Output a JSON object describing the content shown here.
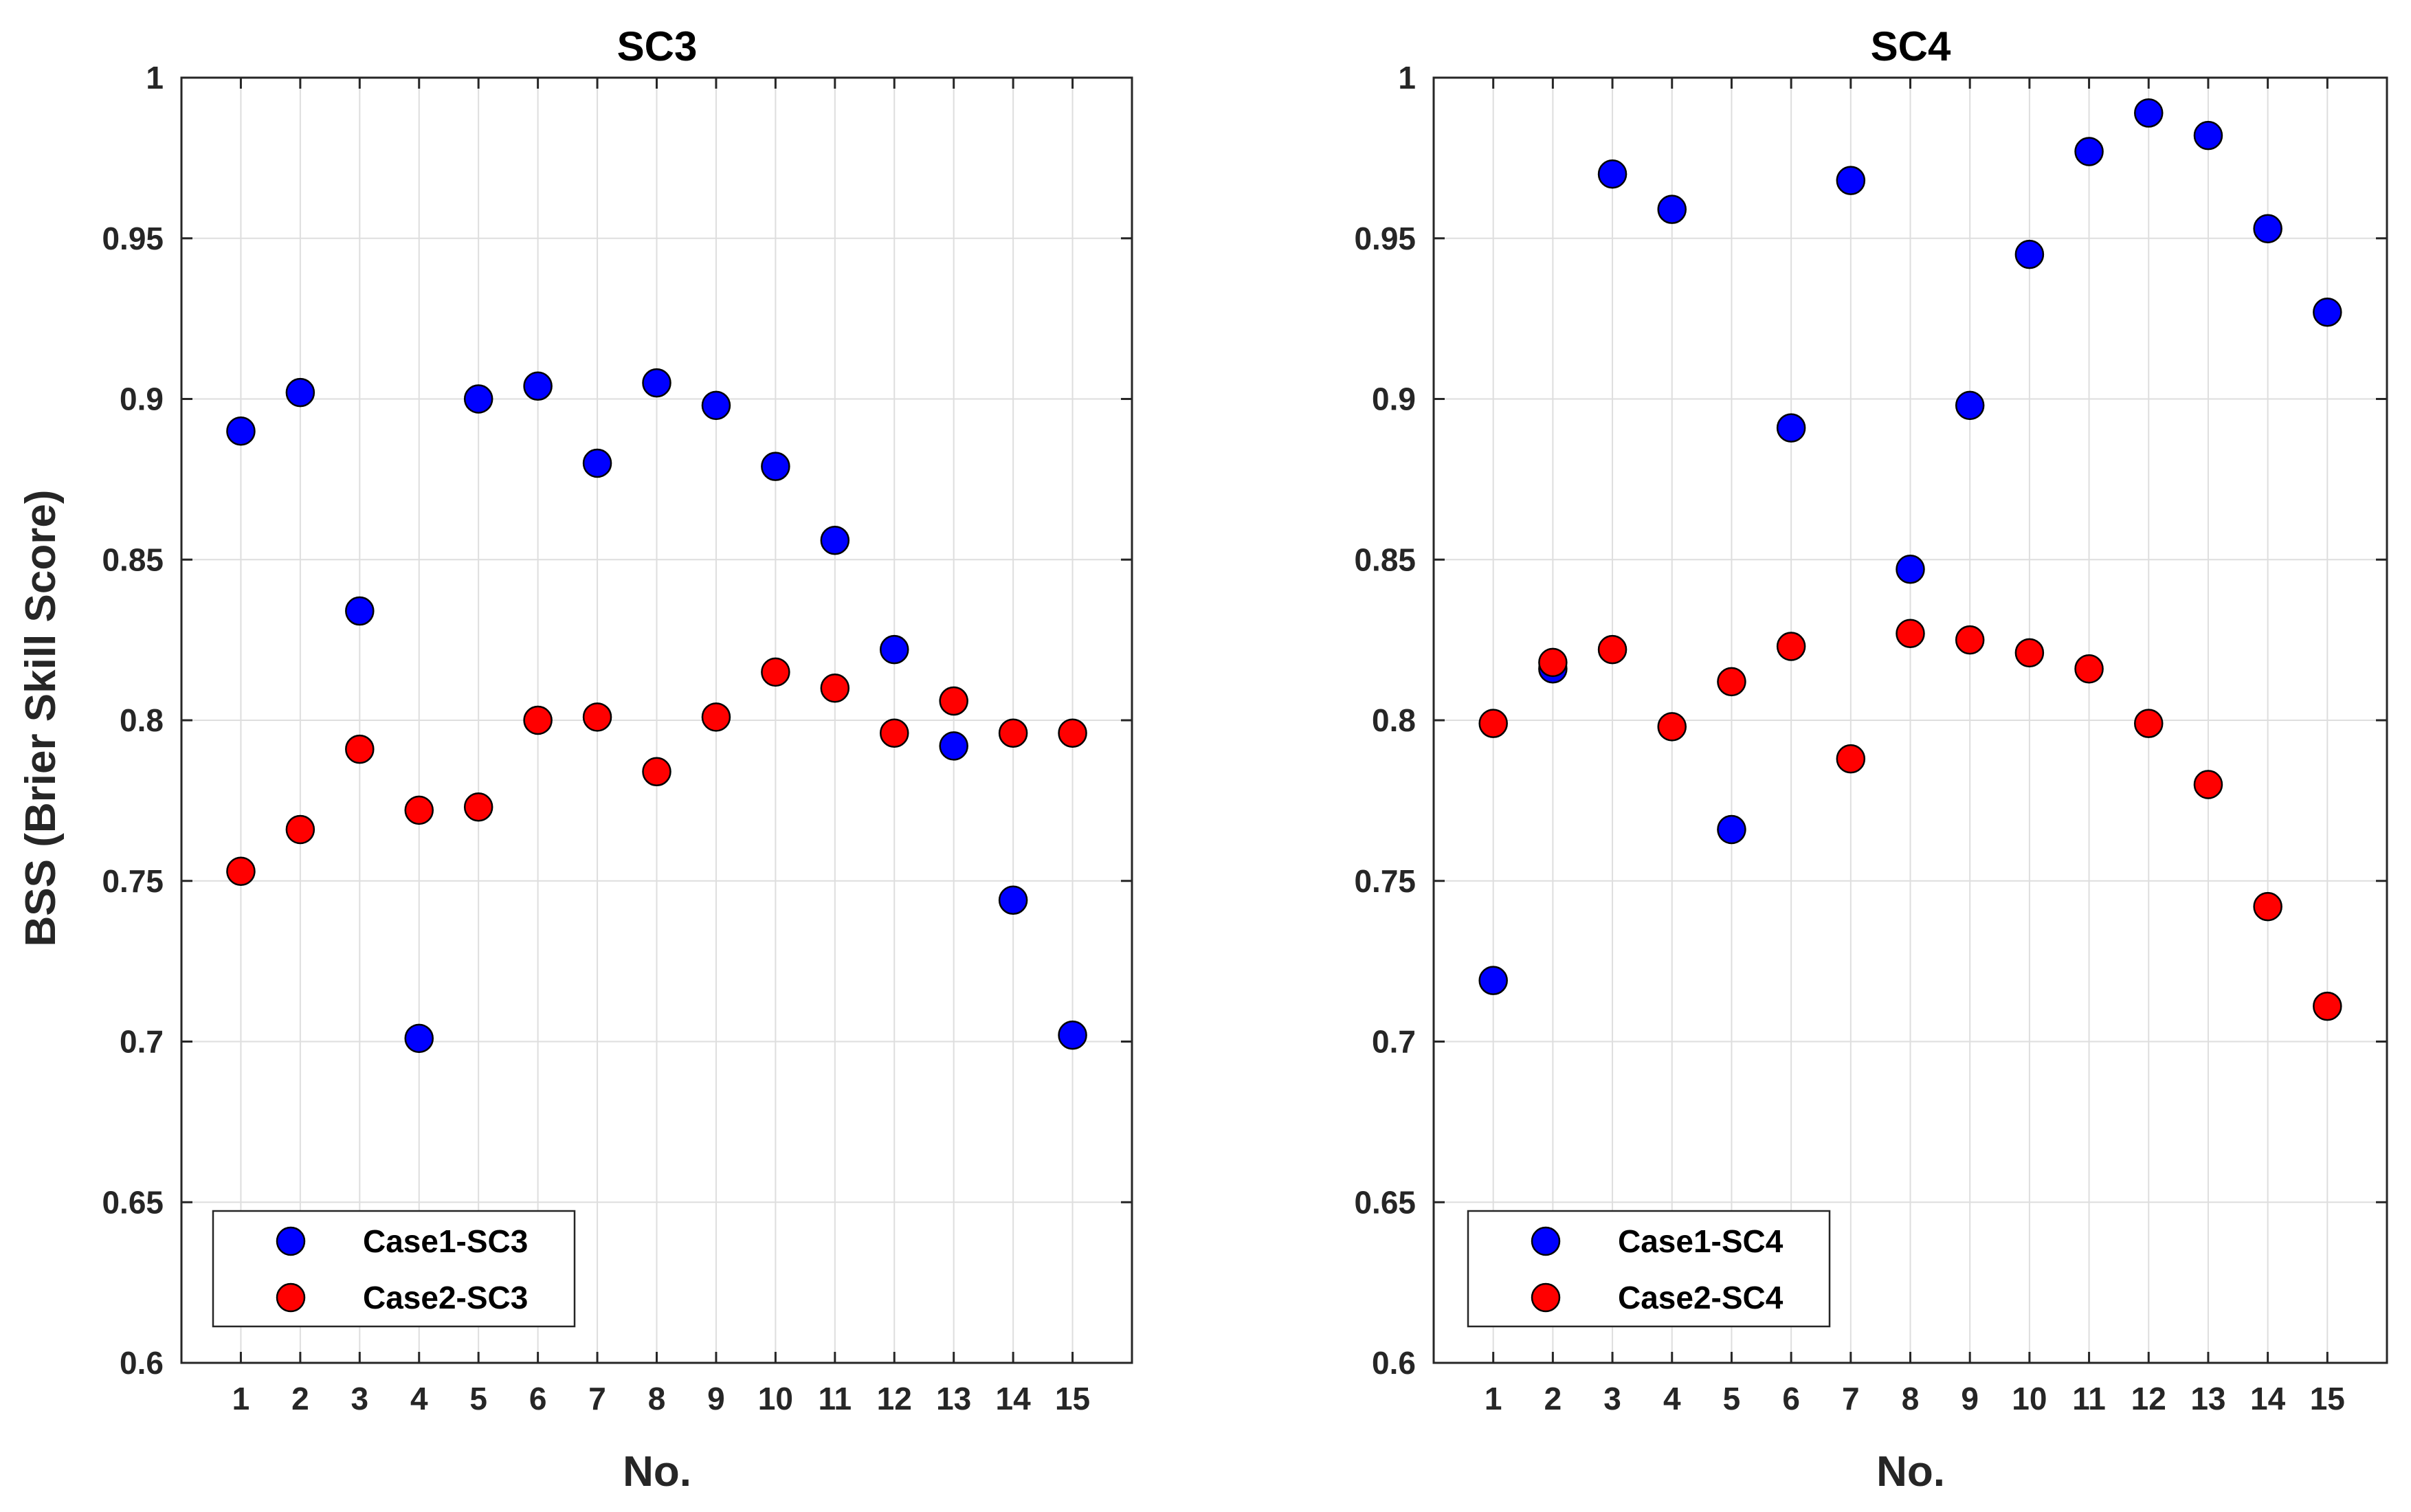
{
  "chart_data": [
    {
      "type": "scatter",
      "title": "SC3",
      "xlabel": "No.",
      "ylabel": "BSS (Brier Skill Score)",
      "x": [
        1,
        2,
        3,
        4,
        5,
        6,
        7,
        8,
        9,
        10,
        11,
        12,
        13,
        14,
        15
      ],
      "xticks": [
        "1",
        "2",
        "3",
        "4",
        "5",
        "6",
        "7",
        "8",
        "9",
        "10",
        "11",
        "12",
        "13",
        "14",
        "15"
      ],
      "xlim": [
        0,
        16
      ],
      "ylim": [
        0.6,
        1.0
      ],
      "yticks": [
        "0.6",
        "0.65",
        "0.7",
        "0.75",
        "0.8",
        "0.85",
        "0.9",
        "0.95",
        "1"
      ],
      "grid": true,
      "legend_position": "bottom-left",
      "series": [
        {
          "name": "Case1-SC3",
          "color": "#0000ff",
          "values": [
            0.89,
            0.902,
            0.834,
            0.701,
            0.9,
            0.904,
            0.88,
            0.905,
            0.898,
            0.879,
            0.856,
            0.822,
            0.792,
            0.744,
            0.702
          ]
        },
        {
          "name": "Case2-SC3",
          "color": "#ff0000",
          "values": [
            0.753,
            0.766,
            0.791,
            0.772,
            0.773,
            0.8,
            0.801,
            0.784,
            0.801,
            0.815,
            0.81,
            0.796,
            0.806,
            0.796,
            0.796
          ]
        }
      ]
    },
    {
      "type": "scatter",
      "title": "SC4",
      "xlabel": "No.",
      "ylabel": "",
      "x": [
        1,
        2,
        3,
        4,
        5,
        6,
        7,
        8,
        9,
        10,
        11,
        12,
        13,
        14,
        15
      ],
      "xticks": [
        "1",
        "2",
        "3",
        "4",
        "5",
        "6",
        "7",
        "8",
        "9",
        "10",
        "11",
        "12",
        "13",
        "14",
        "15"
      ],
      "xlim": [
        0,
        16
      ],
      "ylim": [
        0.6,
        1.0
      ],
      "yticks": [
        "0.6",
        "0.65",
        "0.7",
        "0.75",
        "0.8",
        "0.85",
        "0.9",
        "0.95",
        "1"
      ],
      "grid": true,
      "legend_position": "bottom-left",
      "series": [
        {
          "name": "Case1-SC4",
          "color": "#0000ff",
          "values": [
            0.719,
            0.816,
            0.97,
            0.959,
            0.766,
            0.891,
            0.968,
            0.847,
            0.898,
            0.945,
            0.977,
            0.989,
            0.982,
            0.953,
            0.927
          ]
        },
        {
          "name": "Case2-SC4",
          "color": "#ff0000",
          "values": [
            0.799,
            0.818,
            0.822,
            0.798,
            0.812,
            0.823,
            0.788,
            0.827,
            0.825,
            0.821,
            0.816,
            0.799,
            0.78,
            0.742,
            0.711
          ]
        }
      ]
    }
  ]
}
